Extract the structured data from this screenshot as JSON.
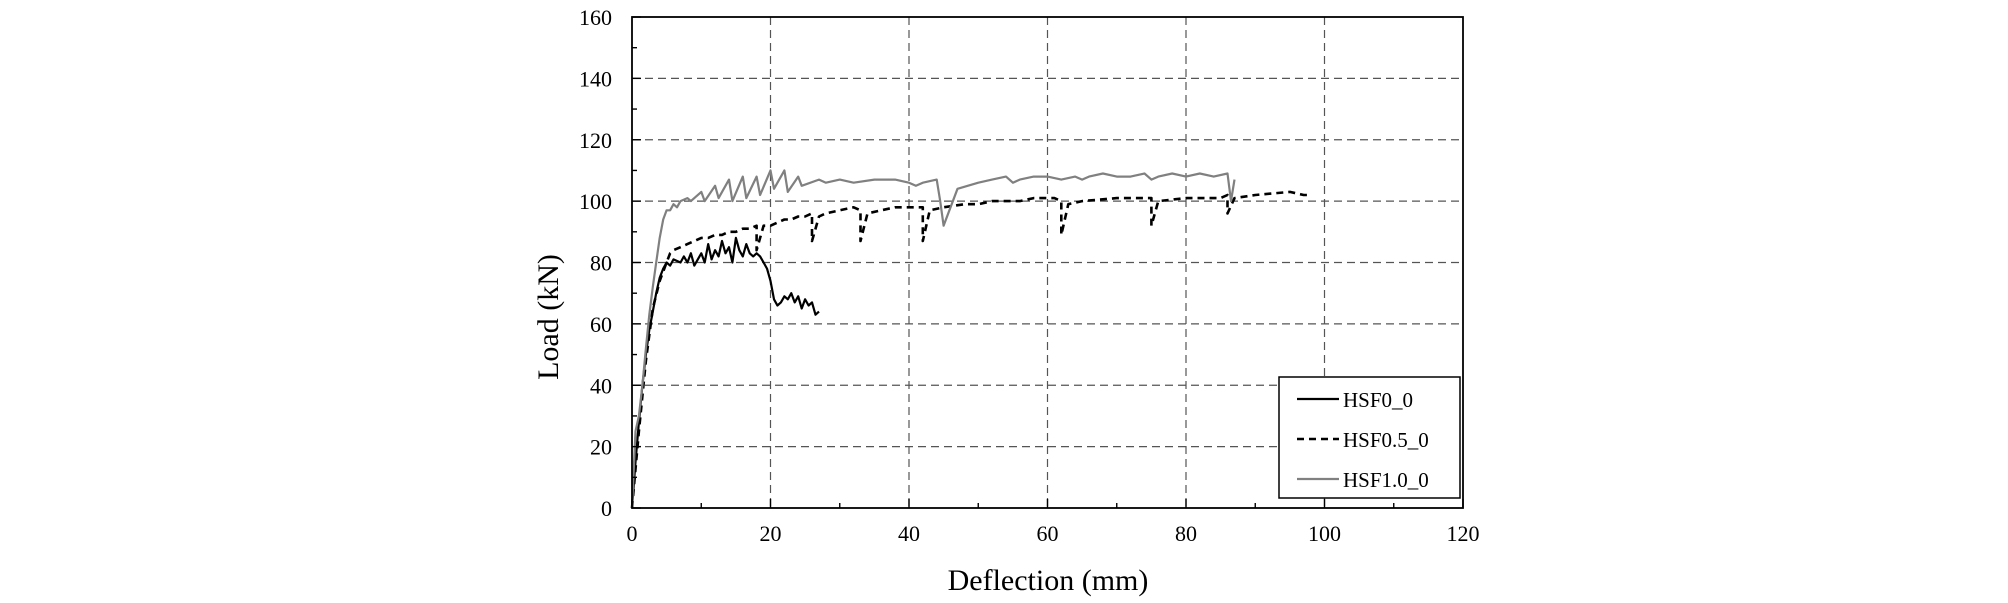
{
  "chart_data": {
    "type": "line",
    "title": "",
    "xlabel": "Deflection (mm)",
    "ylabel": "Load (kN)",
    "xlim": [
      0,
      120
    ],
    "ylim": [
      0,
      160
    ],
    "xticks": [
      0,
      20,
      40,
      60,
      80,
      100,
      120
    ],
    "yticks": [
      0,
      20,
      40,
      60,
      80,
      100,
      120,
      140,
      160
    ],
    "grid": true,
    "legend_position": "bottom-right",
    "series": [
      {
        "name": "HSF0_0",
        "color": "#000000",
        "style": "solid",
        "x": [
          0,
          0.5,
          1,
          1.5,
          2,
          2.5,
          3,
          3.5,
          4,
          4.5,
          5,
          5.5,
          6,
          7,
          7.5,
          8,
          8.5,
          9,
          9.5,
          10,
          10.5,
          11,
          11.5,
          12,
          12.5,
          13,
          13.5,
          14,
          14.5,
          15,
          15.5,
          16,
          16.5,
          17,
          17.5,
          18,
          18.5,
          19,
          19.5,
          20,
          20.5,
          21,
          21.5,
          22,
          22.5,
          23,
          23.5,
          24,
          24.5,
          25,
          25.5,
          26,
          26.5,
          27
        ],
        "y": [
          0,
          15,
          28,
          40,
          50,
          58,
          64,
          70,
          75,
          78,
          80,
          79,
          81,
          80,
          82,
          80,
          83,
          79,
          81,
          83,
          80,
          86,
          81,
          84,
          82,
          87,
          83,
          85,
          80,
          88,
          84,
          82,
          86,
          83,
          82,
          83,
          82,
          80,
          78,
          74,
          68,
          66,
          67,
          69,
          68,
          70,
          67,
          69,
          65,
          68,
          66,
          67,
          63,
          64
        ]
      },
      {
        "name": "HSF0.5_0",
        "color": "#000000",
        "style": "dashed",
        "x": [
          0,
          1,
          2,
          3,
          4,
          5,
          5.5,
          6,
          7,
          8,
          9,
          10,
          11,
          12,
          13,
          14,
          15,
          16,
          17,
          18,
          18,
          19,
          20,
          21,
          22,
          23,
          24,
          25,
          26,
          26,
          27,
          28,
          30,
          32,
          33,
          33,
          34,
          36,
          38,
          40,
          42,
          42,
          43,
          45,
          48,
          50,
          52,
          54,
          56,
          58,
          60,
          61,
          62,
          62,
          63,
          65,
          70,
          75,
          75,
          76,
          80,
          85,
          86,
          86,
          87,
          90,
          95,
          97,
          98
        ],
        "y": [
          0,
          25,
          48,
          65,
          74,
          80,
          83,
          84,
          85,
          86,
          87,
          88,
          88,
          89,
          89,
          90,
          90,
          91,
          91,
          92,
          84,
          92,
          92,
          93,
          94,
          94,
          95,
          95,
          96,
          87,
          95,
          96,
          97,
          98,
          97,
          87,
          96,
          97,
          98,
          98,
          98,
          87,
          97,
          98,
          99,
          99,
          100,
          100,
          100,
          101,
          101,
          101,
          100,
          89,
          99,
          100,
          101,
          101,
          92,
          100,
          101,
          101,
          102,
          96,
          101,
          102,
          103,
          102,
          102
        ]
      },
      {
        "name": "HSF1.0_0",
        "color": "#808080",
        "style": "solid",
        "x": [
          0,
          0.5,
          1,
          1.5,
          2,
          2.5,
          3,
          3.5,
          4,
          4.5,
          5,
          5.5,
          6,
          6.5,
          7,
          8,
          8.5,
          10,
          10.5,
          12,
          12.5,
          14,
          14.5,
          16,
          16.5,
          18,
          18.5,
          20,
          20.5,
          22,
          22.5,
          24,
          24.5,
          27,
          28,
          30,
          32,
          35,
          38,
          40,
          41,
          42,
          44,
          44.5,
          45,
          47,
          50,
          52,
          54,
          55,
          56,
          58,
          60,
          62,
          64,
          65,
          66,
          68,
          70,
          72,
          74,
          75,
          76,
          78,
          80,
          82,
          84,
          86,
          86.5,
          87
        ],
        "y": [
          0,
          25,
          30,
          40,
          52,
          63,
          72,
          80,
          88,
          94,
          97,
          97,
          99,
          98,
          100,
          101,
          100,
          103,
          100,
          105,
          101,
          107,
          100,
          108,
          101,
          108,
          102,
          110,
          104,
          110,
          103,
          108,
          105,
          107,
          106,
          107,
          106,
          107,
          107,
          106,
          105,
          106,
          107,
          100,
          92,
          104,
          106,
          107,
          108,
          106,
          107,
          108,
          108,
          107,
          108,
          107,
          108,
          109,
          108,
          108,
          109,
          107,
          108,
          109,
          108,
          109,
          108,
          109,
          100,
          107
        ]
      }
    ]
  }
}
